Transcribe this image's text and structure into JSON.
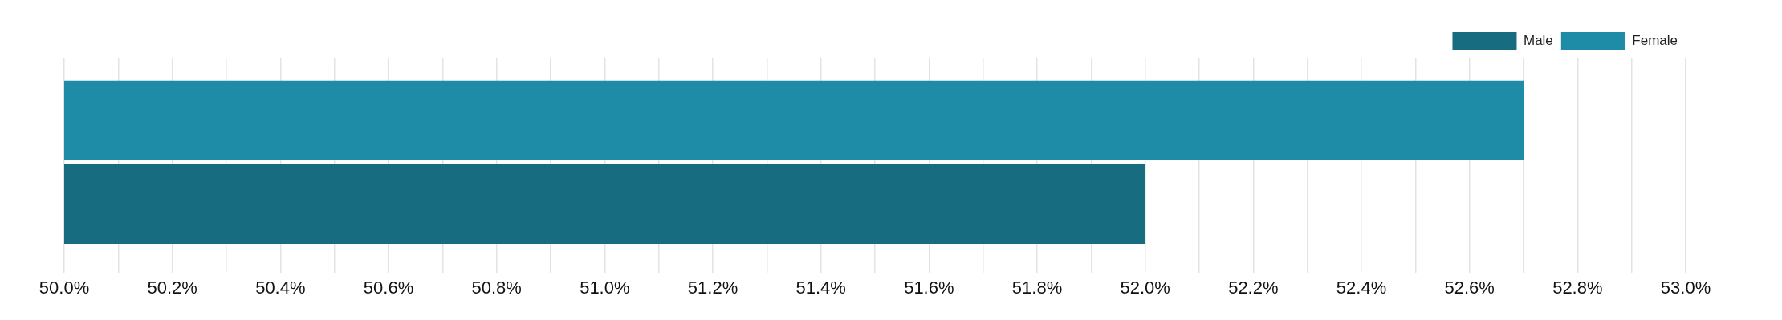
{
  "chart_data": {
    "type": "bar",
    "orientation": "horizontal",
    "categories": [
      null
    ],
    "series": [
      {
        "name": "Female",
        "color": "#1e8ca6",
        "values": [
          52.7
        ]
      },
      {
        "name": "Male",
        "color": "#186c7f",
        "values": [
          52.0
        ]
      }
    ],
    "xlim": [
      50,
      53
    ],
    "xticks": [
      {
        "value": 50.0,
        "label": "50.0%"
      },
      {
        "value": 50.1,
        "label": null
      },
      {
        "value": 50.2,
        "label": "50.2%"
      },
      {
        "value": 50.3,
        "label": null
      },
      {
        "value": 50.4,
        "label": "50.4%"
      },
      {
        "value": 50.5,
        "label": null
      },
      {
        "value": 50.6,
        "label": "50.6%"
      },
      {
        "value": 50.7,
        "label": null
      },
      {
        "value": 50.8,
        "label": "50.8%"
      },
      {
        "value": 50.9,
        "label": null
      },
      {
        "value": 51.0,
        "label": "51.0%"
      },
      {
        "value": 51.1,
        "label": null
      },
      {
        "value": 51.2,
        "label": "51.2%"
      },
      {
        "value": 51.3,
        "label": null
      },
      {
        "value": 51.4,
        "label": "51.4%"
      },
      {
        "value": 51.5,
        "label": null
      },
      {
        "value": 51.6,
        "label": "51.6%"
      },
      {
        "value": 51.7,
        "label": null
      },
      {
        "value": 51.8,
        "label": "51.8%"
      },
      {
        "value": 51.9,
        "label": null
      },
      {
        "value": 52.0,
        "label": "52.0%"
      },
      {
        "value": 52.1,
        "label": null
      },
      {
        "value": 52.2,
        "label": "52.2%"
      },
      {
        "value": 52.3,
        "label": null
      },
      {
        "value": 52.4,
        "label": "52.4%"
      },
      {
        "value": 52.5,
        "label": null
      },
      {
        "value": 52.6,
        "label": "52.6%"
      },
      {
        "value": 52.7,
        "label": null
      },
      {
        "value": 52.8,
        "label": "52.8%"
      },
      {
        "value": 52.9,
        "label": null
      },
      {
        "value": 53.0,
        "label": "53.0%"
      }
    ],
    "grid": "x",
    "legend": "top right"
  }
}
